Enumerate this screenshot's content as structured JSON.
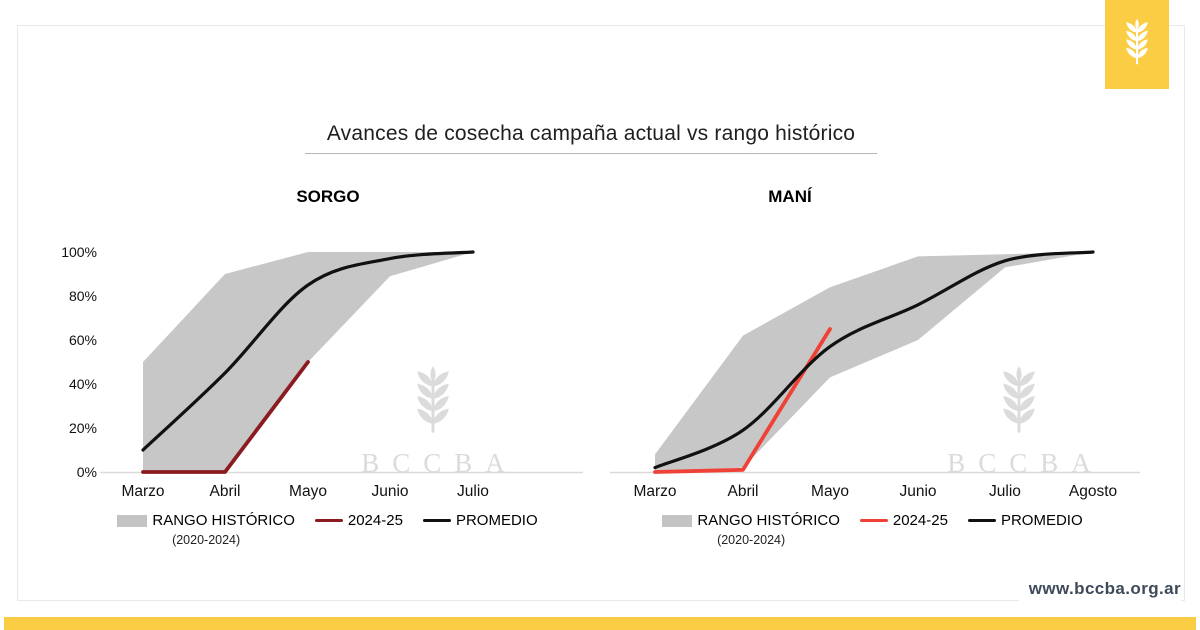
{
  "header": {
    "title": "Avances de cosecha campaña actual vs rango histórico"
  },
  "brand": {
    "logo_icon": "wheat-icon",
    "watermark_text": "BCCBA"
  },
  "footer": {
    "website": "www.bccba.org.ar"
  },
  "colors": {
    "accent_yellow": "#facd45",
    "range_band_gray": "#c7c7c7",
    "sorgo_current_red": "#8b1b21",
    "mani_current_red": "#ef4136",
    "promedio_black": "#111111",
    "axis_line_gray": "#d9d9d9",
    "watermark_gray": "#dbdbdb",
    "card_border": "#e8e8ef",
    "footer_text": "#3e4a59"
  },
  "chart_data": [
    {
      "type": "area",
      "title": "SORGO",
      "categories": [
        "Marzo",
        "Abril",
        "Mayo",
        "Junio",
        "Julio"
      ],
      "y_ticks": [
        "0%",
        "20%",
        "40%",
        "60%",
        "80%",
        "100%"
      ],
      "ylim": [
        0,
        100
      ],
      "grid": false,
      "legend_position": "bottom",
      "series": [
        {
          "name": "RANGO HISTÓRICO",
          "subtitle": "(2020-2024)",
          "kind": "band",
          "upper": [
            50,
            90,
            100,
            100,
            100
          ],
          "lower": [
            0,
            0,
            50,
            89,
            100
          ],
          "color": "#c7c7c7"
        },
        {
          "name": "2024-25",
          "kind": "line",
          "smooth": false,
          "values": [
            0,
            0,
            50,
            null,
            null
          ],
          "color": "#8b1b21"
        },
        {
          "name": "PROMEDIO",
          "kind": "line",
          "smooth": true,
          "values": [
            10,
            45,
            85,
            97,
            100
          ],
          "color": "#111111"
        }
      ],
      "legend": {
        "range_label": "RANGO HISTÓRICO",
        "range_sub": "(2020-2024)",
        "current_label": "2024-25",
        "avg_label": "PROMEDIO"
      }
    },
    {
      "type": "area",
      "title": "MANÍ",
      "categories": [
        "Marzo",
        "Abril",
        "Mayo",
        "Junio",
        "Julio",
        "Agosto"
      ],
      "y_ticks": [
        "0%",
        "20%",
        "40%",
        "60%",
        "80%",
        "100%"
      ],
      "ylim": [
        0,
        100
      ],
      "grid": false,
      "legend_position": "bottom",
      "series": [
        {
          "name": "RANGO HISTÓRICO",
          "subtitle": "(2020-2024)",
          "kind": "band",
          "upper": [
            8,
            62,
            84,
            98,
            99,
            100
          ],
          "lower": [
            0,
            2,
            43,
            60,
            93,
            100
          ],
          "color": "#c7c7c7"
        },
        {
          "name": "2024-25",
          "kind": "line",
          "smooth": false,
          "values": [
            0,
            1,
            65,
            null,
            null,
            null
          ],
          "color": "#ef4136"
        },
        {
          "name": "PROMEDIO",
          "kind": "line",
          "smooth": true,
          "values": [
            2,
            19,
            57,
            76,
            96,
            100
          ],
          "color": "#111111"
        }
      ],
      "legend": {
        "range_label": "RANGO HISTÓRICO",
        "range_sub": "(2020-2024)",
        "current_label": "2024-25",
        "avg_label": "PROMEDIO"
      }
    }
  ]
}
